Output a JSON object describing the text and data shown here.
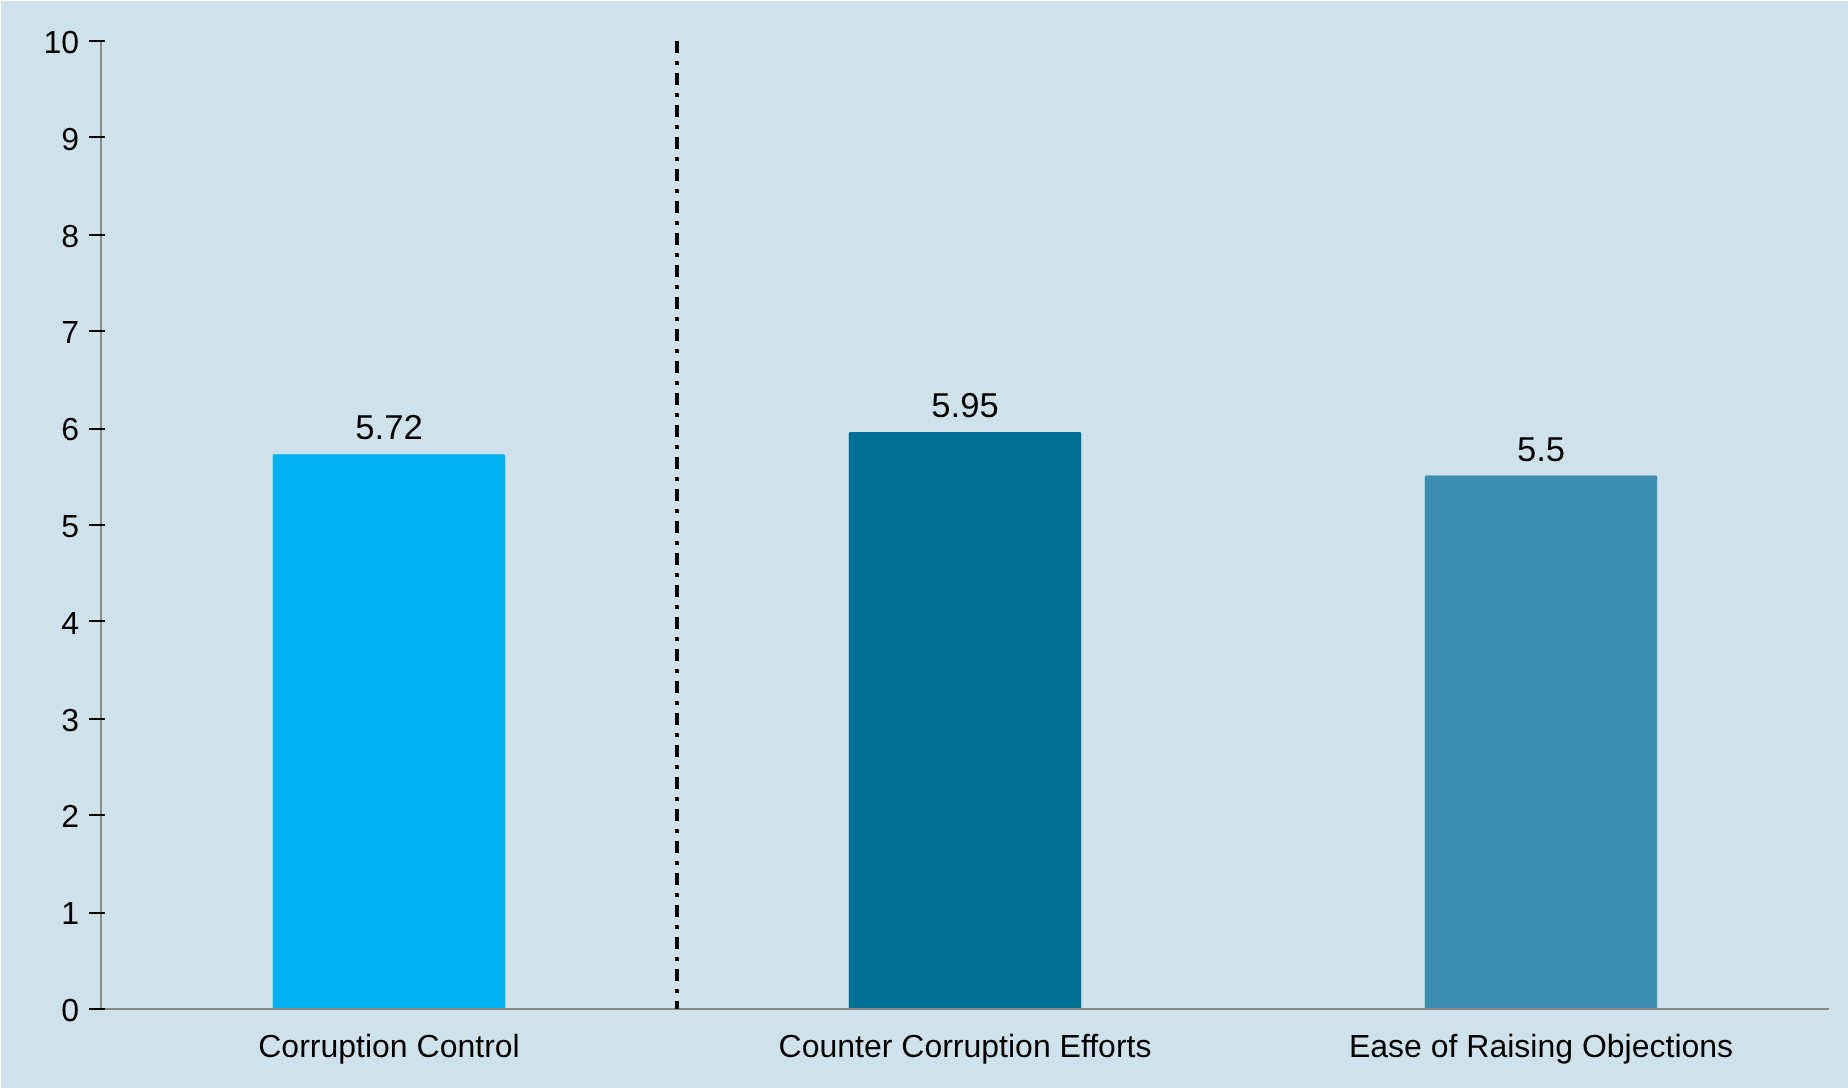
{
  "chart_data": {
    "type": "bar",
    "categories": [
      "Corruption Control",
      "Counter Corruption Efforts",
      "Ease of Raising Objections"
    ],
    "values": [
      5.72,
      5.95,
      5.5
    ],
    "colors": [
      "#00b0f0",
      "#006f94",
      "#3c8db0"
    ],
    "ylim": [
      0,
      10
    ],
    "yticks": [
      0,
      1,
      2,
      3,
      4,
      5,
      6,
      7,
      8,
      9,
      10
    ],
    "data_labels": true,
    "grid": false
  }
}
